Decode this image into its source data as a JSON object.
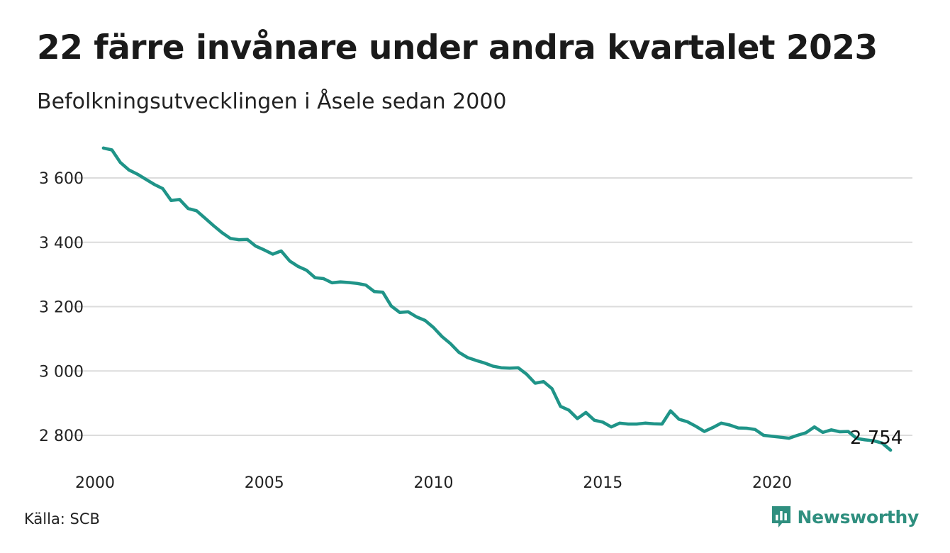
{
  "title": "22 färre invånare under andra kvartalet 2023",
  "subtitle": "Befolkningsutvecklingen i Åsele sedan 2000",
  "source": "Källa: SCB",
  "brand": {
    "name": "Newsworthy",
    "icon": "newsworthy-logo-icon",
    "color": "#2f8f7f"
  },
  "chart_data": {
    "type": "line",
    "line_color": "#1f9488",
    "grid": true,
    "x_ticks": [
      2000,
      2005,
      2010,
      2015,
      2020
    ],
    "y_ticks": [
      2800,
      3000,
      3200,
      3400,
      3600
    ],
    "y_tick_labels": [
      "2 800",
      "3 000",
      "3 200",
      "3 400",
      "3 600"
    ],
    "xlim": [
      2000,
      2023.5
    ],
    "ylim": [
      2720,
      3720
    ],
    "end_label": "2 754",
    "series": [
      {
        "x": [
          2000.25,
          2000.5,
          2000.75,
          2001,
          2001.25,
          2001.5,
          2001.75,
          2002,
          2002.25,
          2002.5,
          2002.75,
          2003,
          2003.25,
          2003.5,
          2003.75,
          2004,
          2004.25,
          2004.5,
          2004.75,
          2005,
          2005.25,
          2005.5,
          2005.75,
          2006,
          2006.25,
          2006.5,
          2006.75,
          2007,
          2007.25,
          2007.5,
          2007.75,
          2008,
          2008.25,
          2008.5,
          2008.75,
          2009,
          2009.25,
          2009.5,
          2009.75,
          2010,
          2010.25,
          2010.5,
          2010.75,
          2011,
          2011.25,
          2011.5,
          2011.75,
          2012,
          2012.25,
          2012.5,
          2012.75,
          2013,
          2013.25,
          2013.5,
          2013.75,
          2014,
          2014.25,
          2014.5,
          2014.75,
          2015,
          2015.25,
          2015.5,
          2015.75,
          2016,
          2016.25,
          2016.5,
          2016.75,
          2017,
          2017.25,
          2017.5,
          2017.75,
          2018,
          2018.25,
          2018.5,
          2018.75,
          2019,
          2019.25,
          2019.5,
          2019.75,
          2020,
          2020.25,
          2020.5,
          2020.75,
          2021,
          2021.25,
          2021.5,
          2021.75,
          2022,
          2022.25,
          2022.5,
          2022.75,
          2023,
          2023.25,
          2023.5
        ],
        "y": [
          3693,
          3687,
          3648,
          3625,
          3612,
          3596,
          3580,
          3567,
          3530,
          3533,
          3505,
          3498,
          3475,
          3452,
          3430,
          3412,
          3408,
          3409,
          3388,
          3376,
          3363,
          3373,
          3342,
          3325,
          3313,
          3290,
          3287,
          3274,
          3277,
          3275,
          3272,
          3267,
          3247,
          3245,
          3202,
          3182,
          3184,
          3168,
          3157,
          3135,
          3107,
          3085,
          3058,
          3042,
          3033,
          3025,
          3015,
          3010,
          3009,
          3010,
          2990,
          2962,
          2967,
          2945,
          2890,
          2878,
          2852,
          2871,
          2847,
          2841,
          2826,
          2838,
          2835,
          2835,
          2838,
          2836,
          2835,
          2876,
          2850,
          2842,
          2828,
          2812,
          2824,
          2838,
          2832,
          2823,
          2822,
          2818,
          2800,
          2797,
          2794,
          2791,
          2800,
          2808,
          2826,
          2809,
          2817,
          2811,
          2812,
          2790,
          2786,
          2783,
          2776,
          2754
        ]
      }
    ]
  }
}
